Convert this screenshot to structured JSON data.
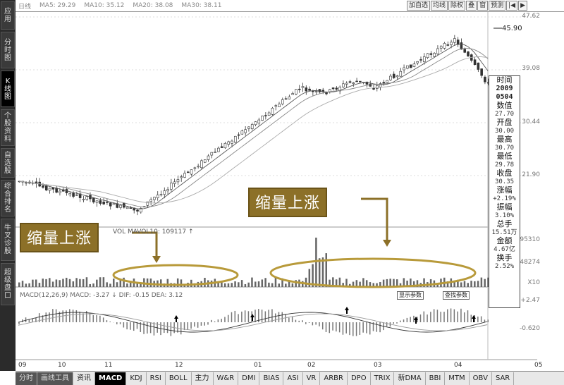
{
  "left_bar": {
    "items": [
      {
        "label": "应用"
      },
      {
        "label": "分时图"
      },
      {
        "label": "K线图"
      },
      {
        "label": "个股资料"
      },
      {
        "label": "自选股"
      },
      {
        "label": "综合排名"
      },
      {
        "label": "牛叉诊股"
      },
      {
        "label": "超级盘口"
      }
    ]
  },
  "top_bar": {
    "ma": [
      "日线",
      "MA5: 29.29",
      "MA10: 35.12",
      "MA20: 38.08",
      "MA30: 38.11"
    ],
    "buttons": [
      "加自选",
      "均线",
      "除权",
      "叠",
      "窗",
      "预测",
      "|◀",
      "▶"
    ]
  },
  "price_axis": [
    "47.62",
    "39.08",
    "30.44",
    "21.90",
    "95310",
    "48274",
    "X10",
    "+2.47",
    "-0.620"
  ],
  "peak_label": "45.90",
  "volume_header": "VOL  MAVOL10: 109117 ↑",
  "macd_header": "MACD(12,26,9) MACD: -3.27 ↓ DIF: -0.15 DEA: 3.12",
  "info_panel": {
    "time_label": "时间",
    "date": "2009\n0504",
    "items": [
      {
        "label": "数值",
        "value": "27.70"
      },
      {
        "label": "开盘",
        "value": "30.00"
      },
      {
        "label": "最高",
        "value": "30.70"
      },
      {
        "label": "最低",
        "value": "29.78"
      },
      {
        "label": "收盘",
        "value": "30.35"
      },
      {
        "label": "涨幅",
        "value": "+2.19%"
      },
      {
        "label": "振幅",
        "value": "3.10%"
      },
      {
        "label": "总手",
        "value": "15.51万"
      },
      {
        "label": "金额",
        "value": "4.67亿"
      },
      {
        "label": "换手",
        "value": "2.52%"
      }
    ]
  },
  "callouts": [
    "缩量上涨",
    "缩量上涨"
  ],
  "small_buttons": [
    "显示参数",
    "查找参数"
  ],
  "time_axis": [
    "09",
    "10",
    "11",
    "12",
    "01",
    "02",
    "03",
    "04",
    "05"
  ],
  "bottom_tabs": [
    "分时",
    "画线工具",
    "资讯",
    "MACD",
    "KDJ",
    "RSI",
    "BOLL",
    "主力",
    "W&R",
    "DMI",
    "BIAS",
    "ASI",
    "VR",
    "ARBR",
    "DPO",
    "TRIX",
    "新DMA",
    "BBI",
    "MTM",
    "OBV",
    "SAR"
  ],
  "colors": {
    "callout_bg": "#8c7028",
    "ellipse": "#b89a3a",
    "candle": "#333333"
  }
}
